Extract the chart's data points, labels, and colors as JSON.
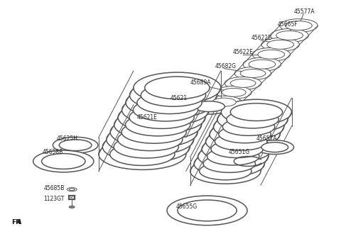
{
  "background_color": "#ffffff",
  "line_color": "#555555",
  "thin_line": 0.7,
  "medium_line": 1.1,
  "thick_line": 1.6,
  "labels": [
    [
      "45577A",
      415,
      15
    ],
    [
      "45665F",
      392,
      33
    ],
    [
      "45622E",
      355,
      53
    ],
    [
      "45622E",
      328,
      73
    ],
    [
      "45682G",
      303,
      93
    ],
    [
      "45689A",
      268,
      116
    ],
    [
      "45621",
      240,
      138
    ],
    [
      "45621E",
      192,
      165
    ],
    [
      "45625H",
      78,
      196
    ],
    [
      "45658B",
      58,
      215
    ],
    [
      "45685B",
      60,
      266
    ],
    [
      "1123GT",
      60,
      281
    ],
    [
      "45655G",
      248,
      293
    ],
    [
      "45657A",
      362,
      196
    ],
    [
      "45651G",
      322,
      215
    ]
  ]
}
